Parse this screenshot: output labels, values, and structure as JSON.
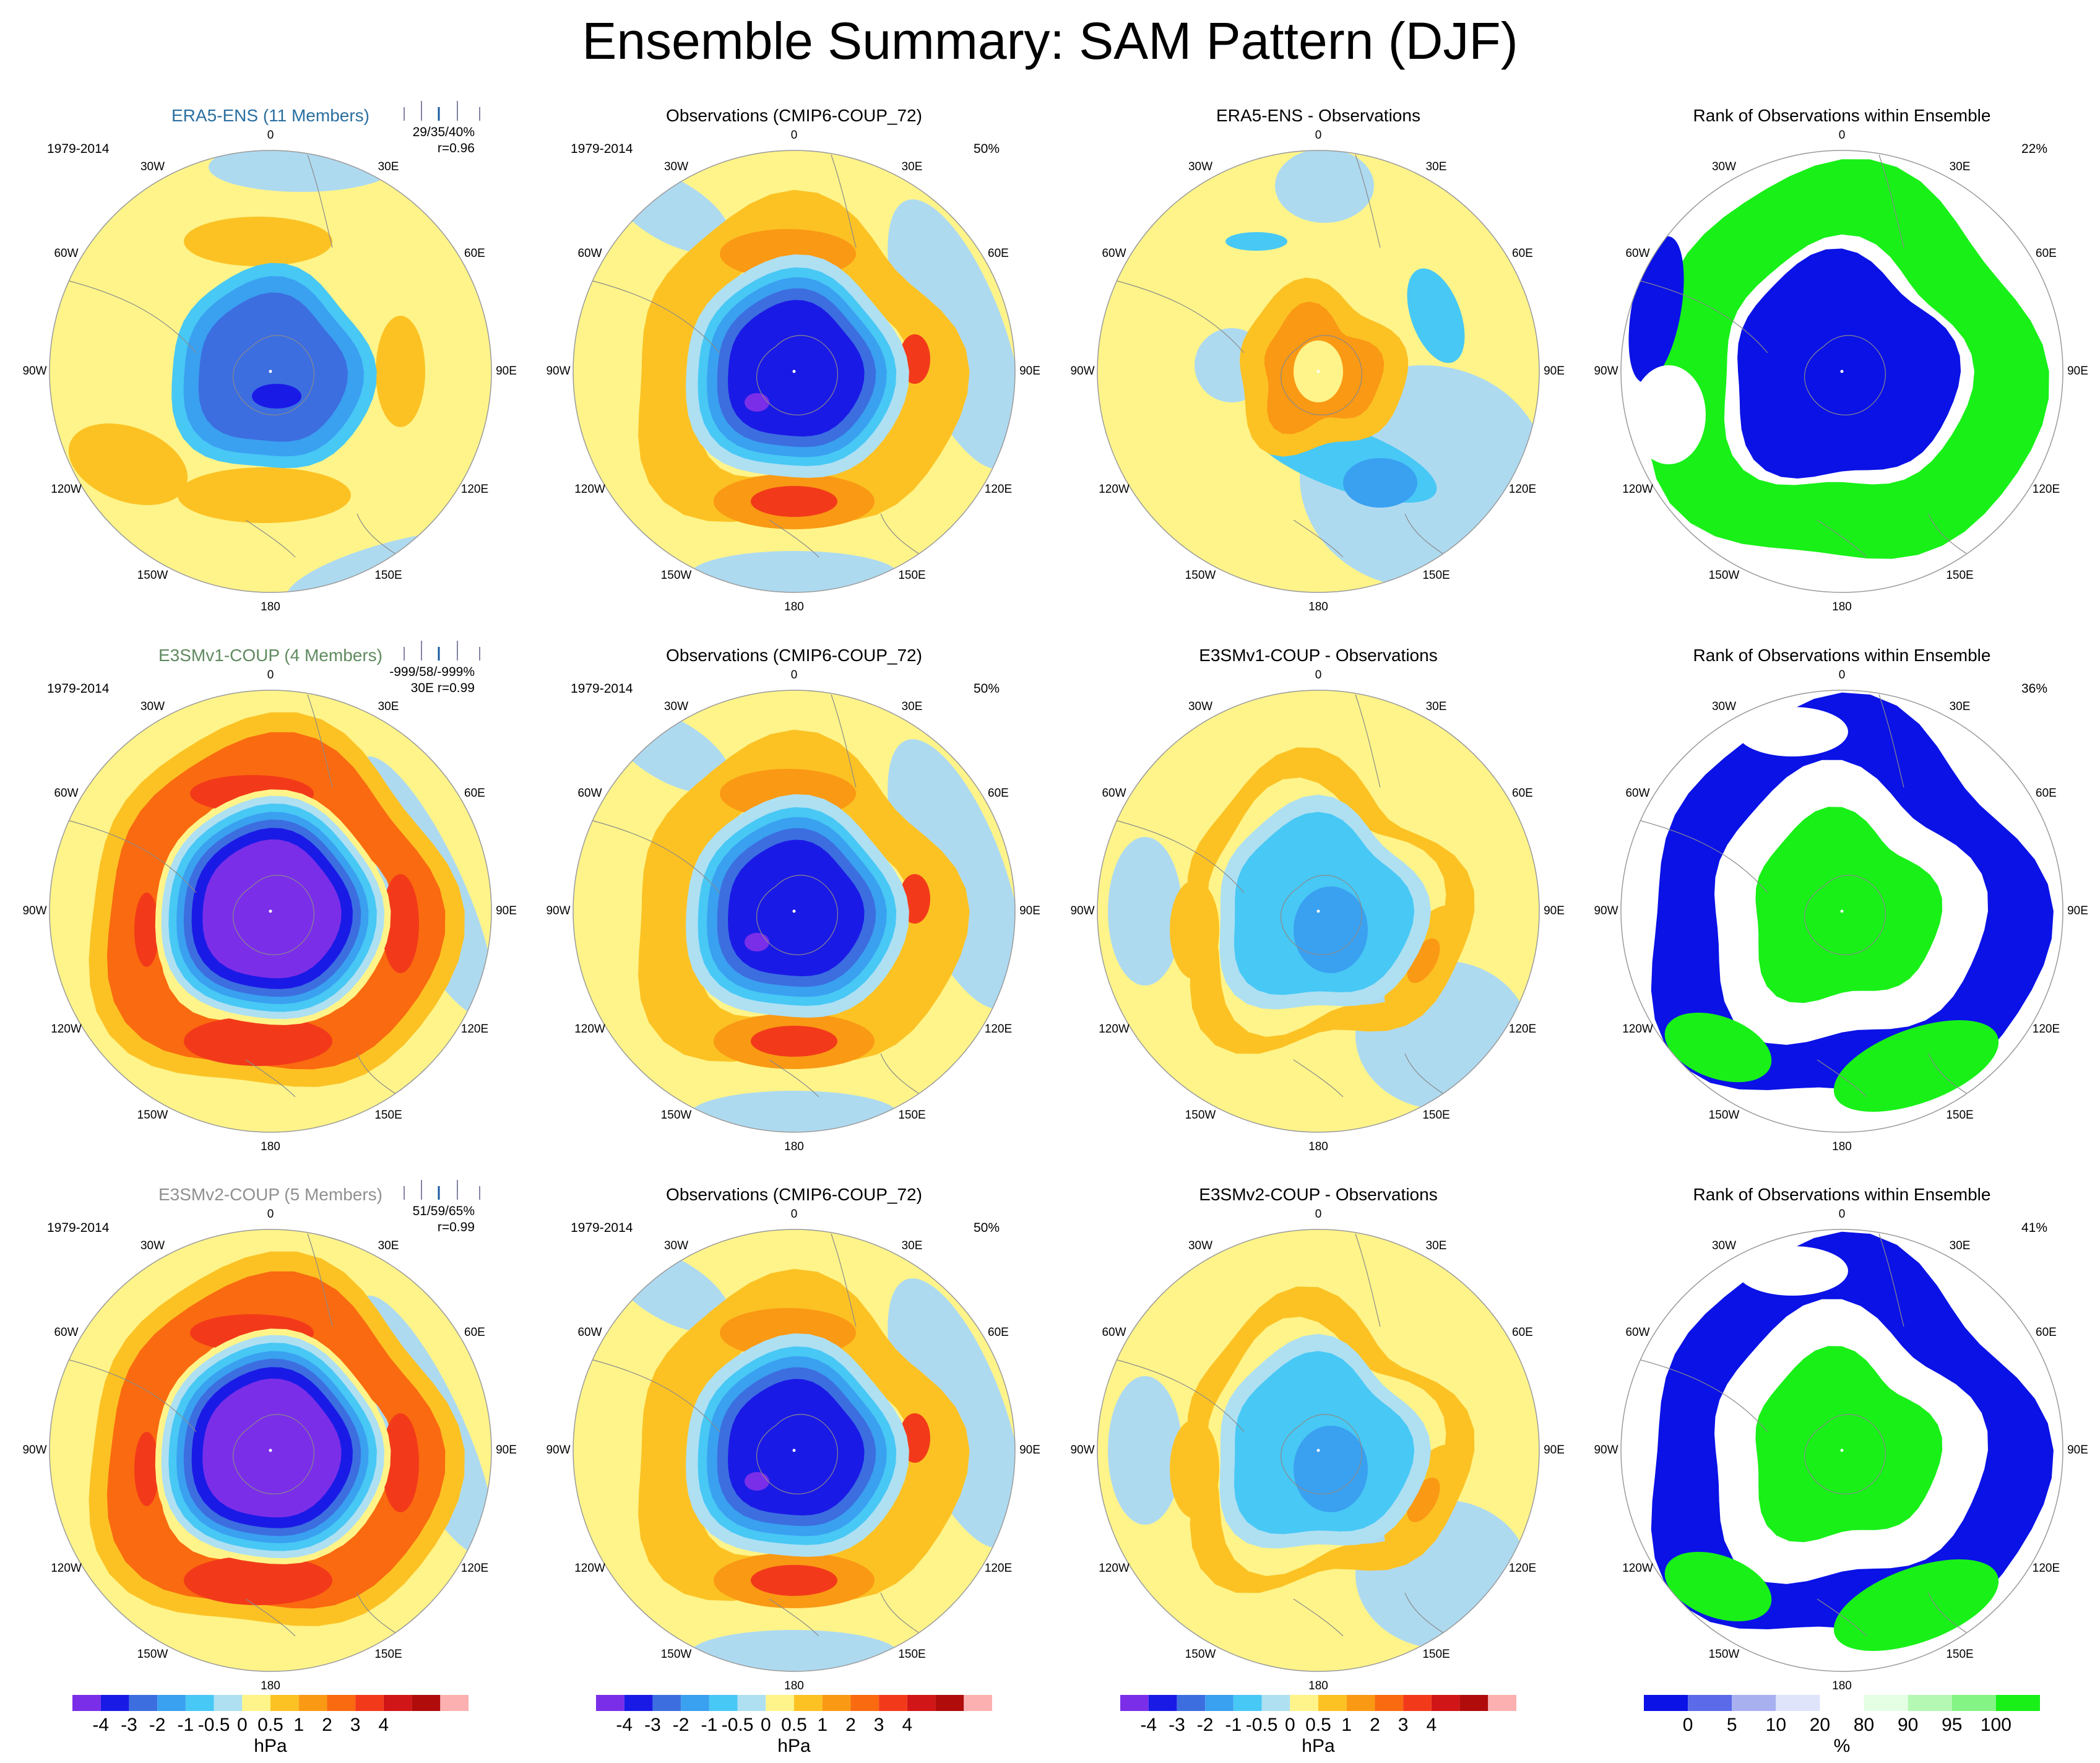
{
  "title": "Ensemble Summary: SAM Pattern (DJF)",
  "palette": {
    "diverging": [
      "#7b2ee8",
      "#1a1ae6",
      "#3c6ee0",
      "#3aa0f0",
      "#48c8f5",
      "#aee0f2",
      "#fff48a",
      "#fcc224",
      "#fa9914",
      "#fa6a10",
      "#f23a1a",
      "#d01616",
      "#b00c0c",
      "#fcb0b0"
    ],
    "rank": [
      "#0a12e6",
      "#5a6ae8",
      "#a8b0f0",
      "#dfe4fa",
      "#ffffff",
      "#e4ffe4",
      "#b4f8b4",
      "#84f484",
      "#18f018"
    ],
    "ocean_light": "#aedaf0",
    "coast": "#8a8a8a"
  },
  "lon_labels": [
    "0",
    "30E",
    "60E",
    "90E",
    "120E",
    "150E",
    "180",
    "150W",
    "120W",
    "90W",
    "60W",
    "30W"
  ],
  "period": "1979-2014",
  "rows": [
    {
      "member": {
        "title": "ERA5-ENS (11 Members)",
        "title_color": "#2a6fa0",
        "stats": "29/35/40%",
        "corr": "r=0.96"
      },
      "obs": {
        "title": "Observations (CMIP6-COUP_72)",
        "pct": "50%"
      },
      "diff": {
        "title": "ERA5-ENS - Observations"
      },
      "rank": {
        "title": "Rank of Observations within Ensemble",
        "pct": "22%"
      }
    },
    {
      "member": {
        "title": "E3SMv1-COUP (4 Members)",
        "title_color": "#5f8a5f",
        "stats": "-999/58/-999%",
        "corr": "30E r=0.99"
      },
      "obs": {
        "title": "Observations (CMIP6-COUP_72)",
        "pct": "50%"
      },
      "diff": {
        "title": "E3SMv1-COUP - Observations"
      },
      "rank": {
        "title": "Rank of Observations within Ensemble",
        "pct": "36%"
      }
    },
    {
      "member": {
        "title": "E3SMv2-COUP (5 Members)",
        "title_color": "#909090",
        "stats": "51/59/65%",
        "corr": "r=0.99"
      },
      "obs": {
        "title": "Observations (CMIP6-COUP_72)",
        "pct": "50%"
      },
      "diff": {
        "title": "E3SMv2-COUP - Observations"
      },
      "rank": {
        "title": "Rank of Observations within Ensemble",
        "pct": "41%"
      }
    }
  ],
  "colorbars": [
    {
      "unit": "hPa",
      "ticks": [
        "-4",
        "-3",
        "-2",
        "-1",
        "-0.5",
        "0",
        "0.5",
        "1",
        "2",
        "3",
        "4"
      ]
    },
    {
      "unit": "hPa",
      "ticks": [
        "-4",
        "-3",
        "-2",
        "-1",
        "-0.5",
        "0",
        "0.5",
        "1",
        "2",
        "3",
        "4"
      ]
    },
    {
      "unit": "hPa",
      "ticks": [
        "-4",
        "-3",
        "-2",
        "-1",
        "-0.5",
        "0",
        "0.5",
        "1",
        "2",
        "3",
        "4"
      ]
    },
    {
      "unit": "%",
      "ticks": [
        "0",
        "5",
        "10",
        "20",
        "80",
        "90",
        "95",
        "100"
      ]
    }
  ],
  "chart_data": {
    "type": "heatmap",
    "title": "Ensemble Summary: SAM Pattern (DJF)",
    "projection": "south-polar-stereographic",
    "variable_unit": "hPa",
    "contour_levels_hPa": [
      -4,
      -3,
      -2,
      -1,
      -0.5,
      0,
      0.5,
      1,
      2,
      3,
      4
    ],
    "rank_levels_percent": [
      0,
      5,
      10,
      20,
      80,
      90,
      95,
      100
    ],
    "panels": [
      {
        "row": 0,
        "col": 0,
        "name": "ERA5-ENS (11 Members)",
        "period": "1979-2014",
        "pattern_corr": 0.96,
        "stats": "29/35/40%",
        "center_value_hPa": -3,
        "ring_value_hPa": 1
      },
      {
        "row": 0,
        "col": 1,
        "name": "Observations (CMIP6-COUP_72)",
        "period": "1979-2014",
        "percent": 50,
        "center_value_hPa": -4,
        "ring_value_hPa": 2
      },
      {
        "row": 0,
        "col": 2,
        "name": "ERA5-ENS - Observations",
        "center_value_hPa": 1,
        "ring_value_hPa": -1
      },
      {
        "row": 0,
        "col": 3,
        "name": "Rank of Observations within Ensemble",
        "percent": 22,
        "center_rank": "0-5",
        "ring_rank": "95-100"
      },
      {
        "row": 1,
        "col": 0,
        "name": "E3SMv1-COUP (4 Members)",
        "period": "1979-2014",
        "pattern_corr": 0.99,
        "stats": "-999/58/-999%",
        "center_value_hPa": -4,
        "ring_value_hPa": 2
      },
      {
        "row": 1,
        "col": 1,
        "name": "Observations (CMIP6-COUP_72)",
        "period": "1979-2014",
        "percent": 50,
        "center_value_hPa": -4,
        "ring_value_hPa": 2
      },
      {
        "row": 1,
        "col": 2,
        "name": "E3SMv1-COUP - Observations",
        "center_value_hPa": -1,
        "ring_value_hPa": 0.5
      },
      {
        "row": 1,
        "col": 3,
        "name": "Rank of Observations within Ensemble",
        "percent": 36,
        "center_rank": "95-100",
        "ring_rank": "0-5"
      },
      {
        "row": 2,
        "col": 0,
        "name": "E3SMv2-COUP (5 Members)",
        "period": "1979-2014",
        "pattern_corr": 0.99,
        "stats": "51/59/65%",
        "center_value_hPa": -4,
        "ring_value_hPa": 2
      },
      {
        "row": 2,
        "col": 1,
        "name": "Observations (CMIP6-COUP_72)",
        "period": "1979-2014",
        "percent": 50,
        "center_value_hPa": -4,
        "ring_value_hPa": 2
      },
      {
        "row": 2,
        "col": 2,
        "name": "E3SMv2-COUP - Observations",
        "center_value_hPa": -1,
        "ring_value_hPa": 0.5
      },
      {
        "row": 2,
        "col": 3,
        "name": "Rank of Observations within Ensemble",
        "percent": 41,
        "center_rank": "95-100",
        "ring_rank": "0-5"
      }
    ]
  }
}
